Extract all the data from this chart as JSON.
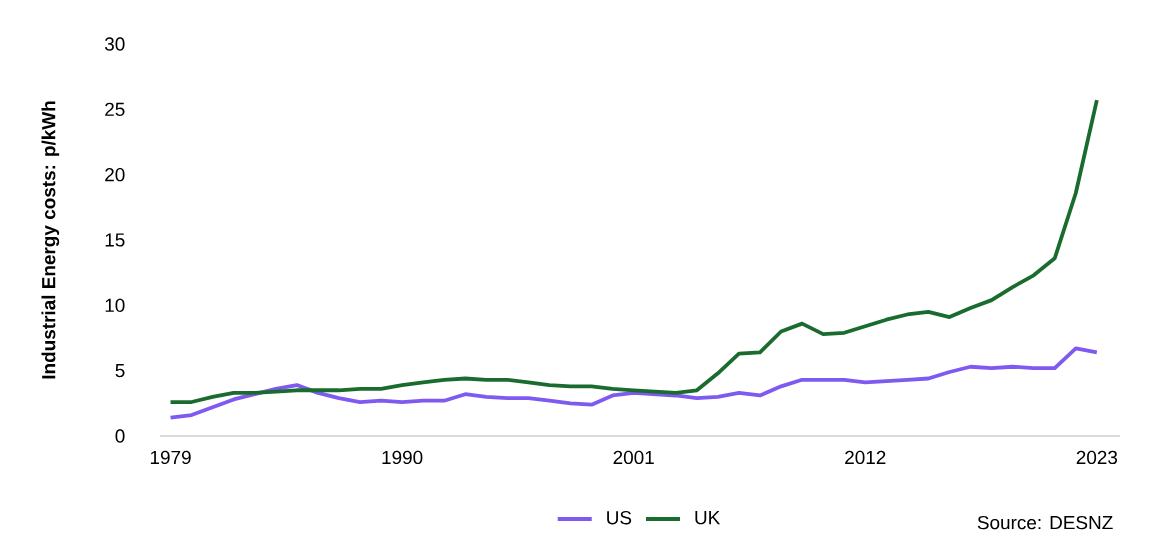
{
  "chart_data": {
    "type": "line",
    "ylabel": "**Industrial Energy costs: p/kWh**",
    "x": [
      1979,
      1980,
      1981,
      1982,
      1983,
      1984,
      1985,
      1986,
      1987,
      1988,
      1989,
      1990,
      1991,
      1992,
      1993,
      1994,
      1995,
      1996,
      1997,
      1998,
      1999,
      2000,
      2001,
      2002,
      2003,
      2004,
      2005,
      2006,
      2007,
      2008,
      2009,
      2010,
      2011,
      2012,
      2013,
      2014,
      2015,
      2016,
      2017,
      2018,
      2019,
      2020,
      2021,
      2022,
      2023
    ],
    "series": [
      {
        "name": "US",
        "color": "#7f5af0",
        "values": [
          1.4,
          1.6,
          2.2,
          2.8,
          3.2,
          3.6,
          3.9,
          3.3,
          2.9,
          2.6,
          2.7,
          2.6,
          2.7,
          2.7,
          3.2,
          3.0,
          2.9,
          2.9,
          2.7,
          2.5,
          2.4,
          3.1,
          3.3,
          3.2,
          3.1,
          2.9,
          3.0,
          3.3,
          3.1,
          3.8,
          4.3,
          4.3,
          4.3,
          4.1,
          4.2,
          4.3,
          4.4,
          4.9,
          5.3,
          5.2,
          5.3,
          5.2,
          5.2,
          6.7,
          6.4
        ]
      },
      {
        "name": "UK",
        "color": "#1a6b2e",
        "values": [
          2.6,
          2.6,
          3.0,
          3.3,
          3.3,
          3.4,
          3.5,
          3.5,
          3.5,
          3.6,
          3.6,
          3.9,
          4.1,
          4.3,
          4.4,
          4.3,
          4.3,
          4.1,
          3.9,
          3.8,
          3.8,
          3.6,
          3.5,
          3.4,
          3.3,
          3.5,
          4.8,
          6.3,
          6.4,
          8.0,
          8.6,
          7.8,
          7.9,
          8.4,
          8.9,
          9.3,
          9.5,
          9.1,
          9.8,
          10.4,
          11.4,
          12.3,
          13.6,
          18.6,
          25.7
        ]
      }
    ],
    "xlim": [
      1978.5,
      2024.1
    ],
    "xticks": [
      1979,
      1990,
      2001,
      2012,
      2023
    ],
    "ylim": [
      0,
      30
    ],
    "yticks": [
      0,
      5,
      10,
      15,
      20,
      25,
      30
    ],
    "legend": "bottom",
    "annotations": [
      "Source: DESNZ"
    ]
  }
}
